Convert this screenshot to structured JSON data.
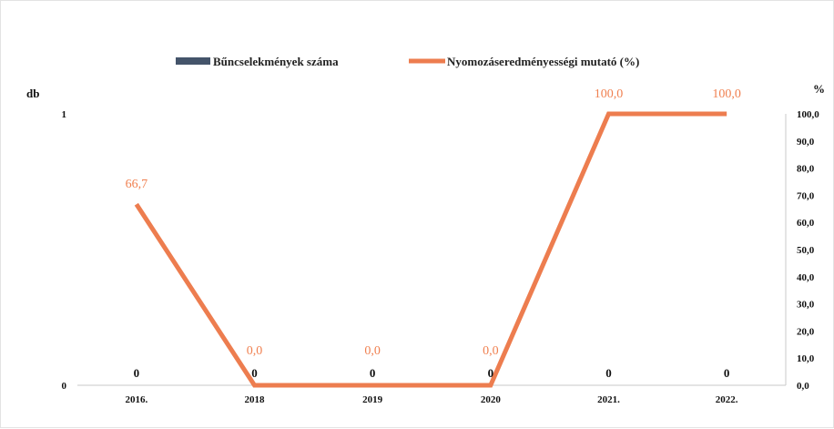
{
  "chart_data": {
    "type": "line",
    "categories": [
      "2016.",
      "2018",
      "2019",
      "2020",
      "2021.",
      "2022."
    ],
    "ylabel": "db",
    "y2label": "%",
    "ylim": [
      0,
      1
    ],
    "y2lim": [
      0,
      100
    ],
    "yticks": [
      "0",
      "1"
    ],
    "y2ticks": [
      "0,0",
      "10,0",
      "20,0",
      "30,0",
      "40,0",
      "50,0",
      "60,0",
      "70,0",
      "80,0",
      "90,0",
      "100,0"
    ],
    "legend_position": "top",
    "grid": false,
    "series": [
      {
        "name": "Bűncselekmények száma",
        "type": "bar",
        "axis": "left",
        "color": "#44546a",
        "values": [
          0,
          0,
          0,
          0,
          0,
          0
        ],
        "labels": [
          "0",
          "0",
          "0",
          "0",
          "0",
          "0"
        ]
      },
      {
        "name": "Nyomozáseredményességi mutató (%)",
        "type": "line",
        "axis": "right",
        "color": "#ed7d4f",
        "values": [
          66.7,
          0.0,
          0.0,
          0.0,
          100.0,
          100.0
        ],
        "labels": [
          "66,7",
          "0,0",
          "0,0",
          "0,0",
          "100,0",
          "100,0"
        ]
      }
    ]
  }
}
